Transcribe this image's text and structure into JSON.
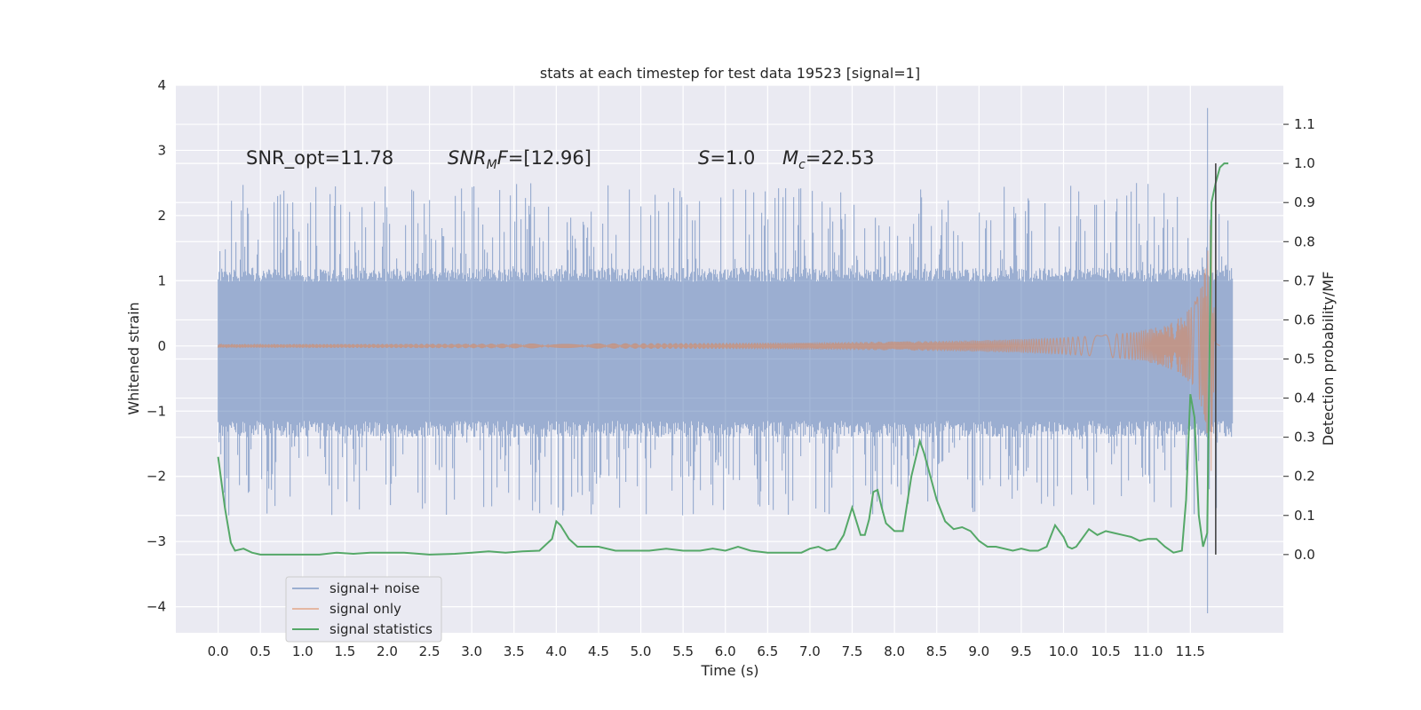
{
  "chart_data": {
    "type": "line",
    "title": "stats at each timestep for test data 19523 [signal=1]",
    "xlabel": "Time (s)",
    "ylabel": "Whitened strain",
    "y2label": "Detection probability/MF",
    "xlim": [
      -0.5,
      12.6
    ],
    "ylim": [
      -4.4,
      4.0
    ],
    "y2lim": [
      -0.2,
      1.2
    ],
    "x_ticks": [
      "0.0",
      "0.5",
      "1.0",
      "1.5",
      "2.0",
      "2.5",
      "3.0",
      "3.5",
      "4.0",
      "4.5",
      "5.0",
      "5.5",
      "6.0",
      "6.5",
      "7.0",
      "7.5",
      "8.0",
      "8.5",
      "9.0",
      "9.5",
      "10.0",
      "10.5",
      "11.0",
      "11.5"
    ],
    "y_ticks": [
      "4",
      "3",
      "2",
      "1",
      "0",
      "−1",
      "−2",
      "−3",
      "−4"
    ],
    "y2_ticks": [
      "1.1",
      "1.0",
      "0.9",
      "0.8",
      "0.7",
      "0.6",
      "0.5",
      "0.4",
      "0.3",
      "0.2",
      "0.1",
      "0.0"
    ],
    "grid": true,
    "legend_position": "lower-left",
    "annotations": {
      "snr_opt": "SNR_opt=11.78",
      "snr_mf_prefix": "SNR",
      "snr_mf_sub": "M",
      "snr_mf_suffix": "F=[12.96]",
      "s_var": "S",
      "s_value": "=1.0",
      "mc_var": "M",
      "mc_sub": "c",
      "mc_value": "=22.53"
    },
    "series": [
      {
        "name": "signal+ noise",
        "color": "#4c72b0",
        "axis": "left",
        "x_range": [
          0.0,
          12.0
        ],
        "band_positive": 1.2,
        "band_negative": -1.4,
        "max_value": 3.65,
        "min_value": -4.1
      },
      {
        "name": "signal only",
        "color": "#dd8452",
        "axis": "left",
        "x_range": [
          0.0,
          11.85
        ],
        "peak_time": 11.75,
        "peak_amplitude": 2.05
      },
      {
        "name": "signal statistics",
        "color": "#55a868",
        "axis": "right",
        "x": [
          0.0,
          0.08,
          0.15,
          0.2,
          0.3,
          0.4,
          0.5,
          0.6,
          0.8,
          1.0,
          1.2,
          1.4,
          1.6,
          1.8,
          2.0,
          2.2,
          2.5,
          2.8,
          3.0,
          3.2,
          3.4,
          3.6,
          3.8,
          3.95,
          4.0,
          4.05,
          4.15,
          4.25,
          4.35,
          4.5,
          4.7,
          4.9,
          5.1,
          5.3,
          5.5,
          5.7,
          5.85,
          6.0,
          6.15,
          6.3,
          6.5,
          6.7,
          6.9,
          7.0,
          7.1,
          7.2,
          7.3,
          7.4,
          7.5,
          7.6,
          7.65,
          7.7,
          7.75,
          7.8,
          7.85,
          7.9,
          8.0,
          8.1,
          8.2,
          8.3,
          8.35,
          8.4,
          8.5,
          8.6,
          8.7,
          8.8,
          8.9,
          9.0,
          9.1,
          9.2,
          9.4,
          9.5,
          9.6,
          9.7,
          9.8,
          9.9,
          10.0,
          10.05,
          10.1,
          10.15,
          10.2,
          10.3,
          10.4,
          10.5,
          10.6,
          10.7,
          10.8,
          10.9,
          11.0,
          11.1,
          11.2,
          11.3,
          11.4,
          11.45,
          11.5,
          11.55,
          11.6,
          11.65,
          11.7,
          11.75,
          11.8,
          11.85,
          11.9,
          11.95
        ],
        "y": [
          0.25,
          0.12,
          0.03,
          0.01,
          0.015,
          0.005,
          0.0,
          0.0,
          0.0,
          0.0,
          0.0,
          0.005,
          0.002,
          0.005,
          0.005,
          0.005,
          0.0,
          0.002,
          0.005,
          0.008,
          0.005,
          0.008,
          0.01,
          0.04,
          0.085,
          0.075,
          0.04,
          0.02,
          0.02,
          0.02,
          0.01,
          0.01,
          0.01,
          0.015,
          0.01,
          0.01,
          0.015,
          0.01,
          0.02,
          0.01,
          0.005,
          0.005,
          0.005,
          0.015,
          0.02,
          0.01,
          0.015,
          0.05,
          0.12,
          0.05,
          0.05,
          0.09,
          0.16,
          0.165,
          0.12,
          0.08,
          0.06,
          0.06,
          0.2,
          0.29,
          0.26,
          0.22,
          0.14,
          0.085,
          0.065,
          0.07,
          0.06,
          0.035,
          0.02,
          0.02,
          0.01,
          0.015,
          0.01,
          0.01,
          0.02,
          0.075,
          0.045,
          0.02,
          0.015,
          0.02,
          0.035,
          0.065,
          0.05,
          0.06,
          0.055,
          0.05,
          0.045,
          0.035,
          0.04,
          0.04,
          0.02,
          0.005,
          0.01,
          0.14,
          0.41,
          0.35,
          0.1,
          0.02,
          0.055,
          0.9,
          0.95,
          0.99,
          1.0,
          1.0
        ]
      }
    ],
    "vertical_line_x": 11.8
  }
}
